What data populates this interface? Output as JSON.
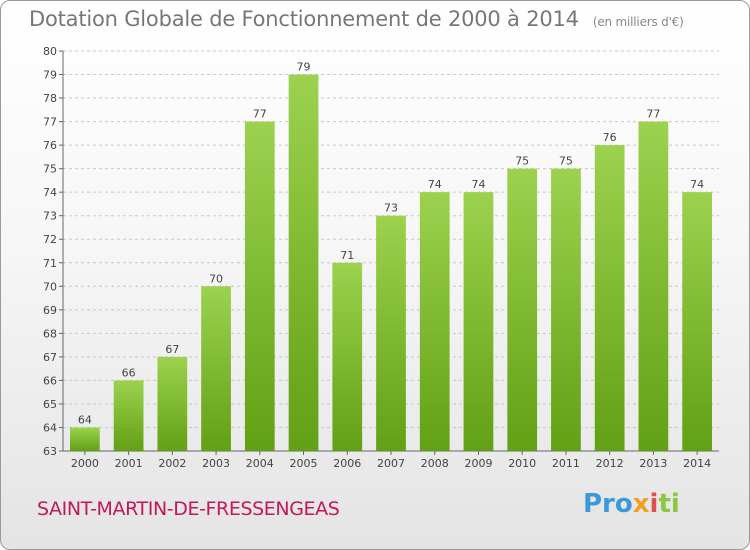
{
  "chart_data": {
    "type": "bar",
    "title": "Dotation Globale de Fonctionnement de 2000 à 2014",
    "subtitle": "(en milliers d'€)",
    "categories": [
      "2000",
      "2001",
      "2002",
      "2003",
      "2004",
      "2005",
      "2006",
      "2007",
      "2008",
      "2009",
      "2010",
      "2011",
      "2012",
      "2013",
      "2014"
    ],
    "values": [
      64,
      66,
      67,
      70,
      77,
      79,
      71,
      73,
      74,
      74,
      75,
      75,
      76,
      77,
      74
    ],
    "ylim": [
      63,
      80
    ],
    "yticks": [
      63,
      64,
      65,
      66,
      67,
      68,
      69,
      70,
      71,
      72,
      73,
      74,
      75,
      76,
      77,
      78,
      79,
      80
    ],
    "xlabel": "",
    "ylabel": "",
    "grid": true
  },
  "footer": {
    "commune": "SAINT-MARTIN-DE-FRESSENGEAS",
    "logo": [
      "Pro",
      "x",
      "i",
      "ti"
    ]
  },
  "colors": {
    "bar_light": "#9cd24e",
    "bar_dark": "#62a015",
    "grid": "#c8c8c8",
    "commune": "#c2185b"
  }
}
